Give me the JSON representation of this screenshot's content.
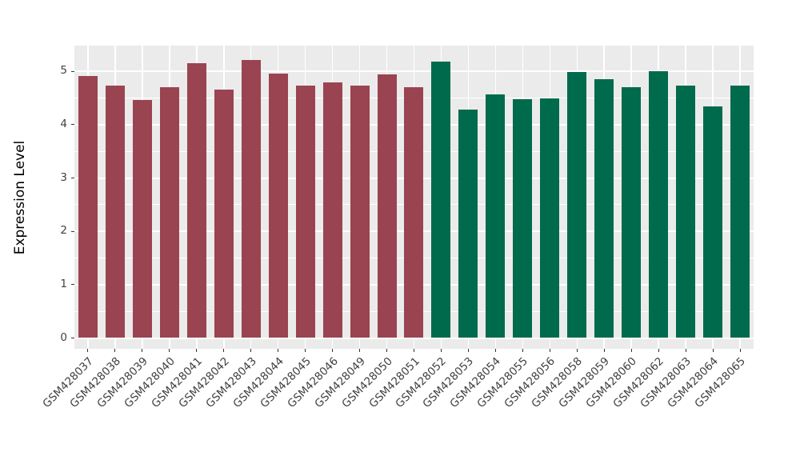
{
  "chart_data": {
    "type": "bar",
    "title": "",
    "xlabel": "",
    "ylabel": "Expression Level",
    "ylim": [
      0,
      5.49
    ],
    "yticks": [
      0,
      1,
      2,
      3,
      4,
      5
    ],
    "grid": true,
    "legend": "none",
    "background_color": "#FFFFFF",
    "panel_background_color": "#EBEBEB",
    "gridline_color": "#FFFFFF",
    "tick_color": "#333333",
    "tick_label_color": "#404040",
    "axis_title_color": "#000000",
    "categories": [
      "GSM428037",
      "GSM428038",
      "GSM428039",
      "GSM428040",
      "GSM428041",
      "GSM428042",
      "GSM428043",
      "GSM428044",
      "GSM428045",
      "GSM428046",
      "GSM428049",
      "GSM428050",
      "GSM428051",
      "GSM428052",
      "GSM428053",
      "GSM428054",
      "GSM428055",
      "GSM428056",
      "GSM428058",
      "GSM428059",
      "GSM428060",
      "GSM428062",
      "GSM428063",
      "GSM428064",
      "GSM428065"
    ],
    "values": [
      4.91,
      4.74,
      4.47,
      4.71,
      5.16,
      4.66,
      5.22,
      4.96,
      4.74,
      4.8,
      4.74,
      4.94,
      4.71,
      5.18,
      4.29,
      4.57,
      4.48,
      4.5,
      4.99,
      4.85,
      4.7,
      5.0,
      4.74,
      4.35,
      4.74
    ],
    "bar_groups": [
      0,
      0,
      0,
      0,
      0,
      0,
      0,
      0,
      0,
      0,
      0,
      0,
      0,
      1,
      1,
      1,
      1,
      1,
      1,
      1,
      1,
      1,
      1,
      1,
      1
    ],
    "group_colors": [
      "#9A4451",
      "#006B4C"
    ]
  }
}
